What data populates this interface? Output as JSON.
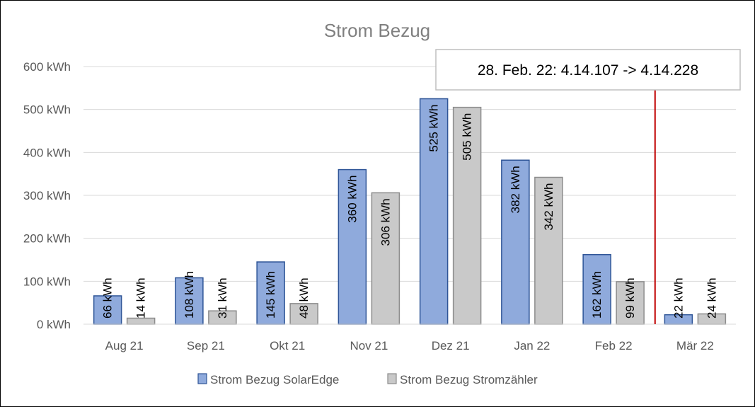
{
  "chart_data": {
    "type": "bar",
    "title": "Strom Bezug",
    "categories": [
      "Aug 21",
      "Sep 21",
      "Okt 21",
      "Nov 21",
      "Dez 21",
      "Jan 22",
      "Feb 22",
      "Mär 22"
    ],
    "series": [
      {
        "name": "Strom Bezug SolarEdge",
        "values": [
          66,
          108,
          145,
          360,
          525,
          382,
          162,
          22
        ],
        "labels": [
          "66 kWh",
          "108 kWh",
          "145 kWh",
          "360 kWh",
          "525 kWh",
          "382 kWh",
          "162 kWh",
          "22 kWh"
        ],
        "color": "#8faadc",
        "border_color": "#2f5597"
      },
      {
        "name": "Strom Bezug Stromzähler",
        "values": [
          14,
          31,
          48,
          306,
          505,
          342,
          99,
          24
        ],
        "labels": [
          "14 kWh",
          "31 kWh",
          "48 kWh",
          "306 kWh",
          "505 kWh",
          "342 kWh",
          "99 kWh",
          "24 kWh"
        ],
        "color": "#c9c9c9",
        "border_color": "#8c8c8c"
      }
    ],
    "y_ticks": [
      0,
      100,
      200,
      300,
      400,
      500,
      600
    ],
    "y_tick_labels": [
      "0 kWh",
      "100 kWh",
      "200 kWh",
      "300 kWh",
      "400 kWh",
      "500 kWh",
      "600 kWh"
    ],
    "ylim": [
      0,
      600
    ],
    "xlabel": "",
    "ylabel": "",
    "grid": true,
    "legend_position": "bottom",
    "annotation": {
      "text": "28. Feb. 22: 4.14.107 -> 4.14.228",
      "marker_between": [
        "Feb 22",
        "Mär 22"
      ],
      "marker_color": "#c00000"
    }
  }
}
